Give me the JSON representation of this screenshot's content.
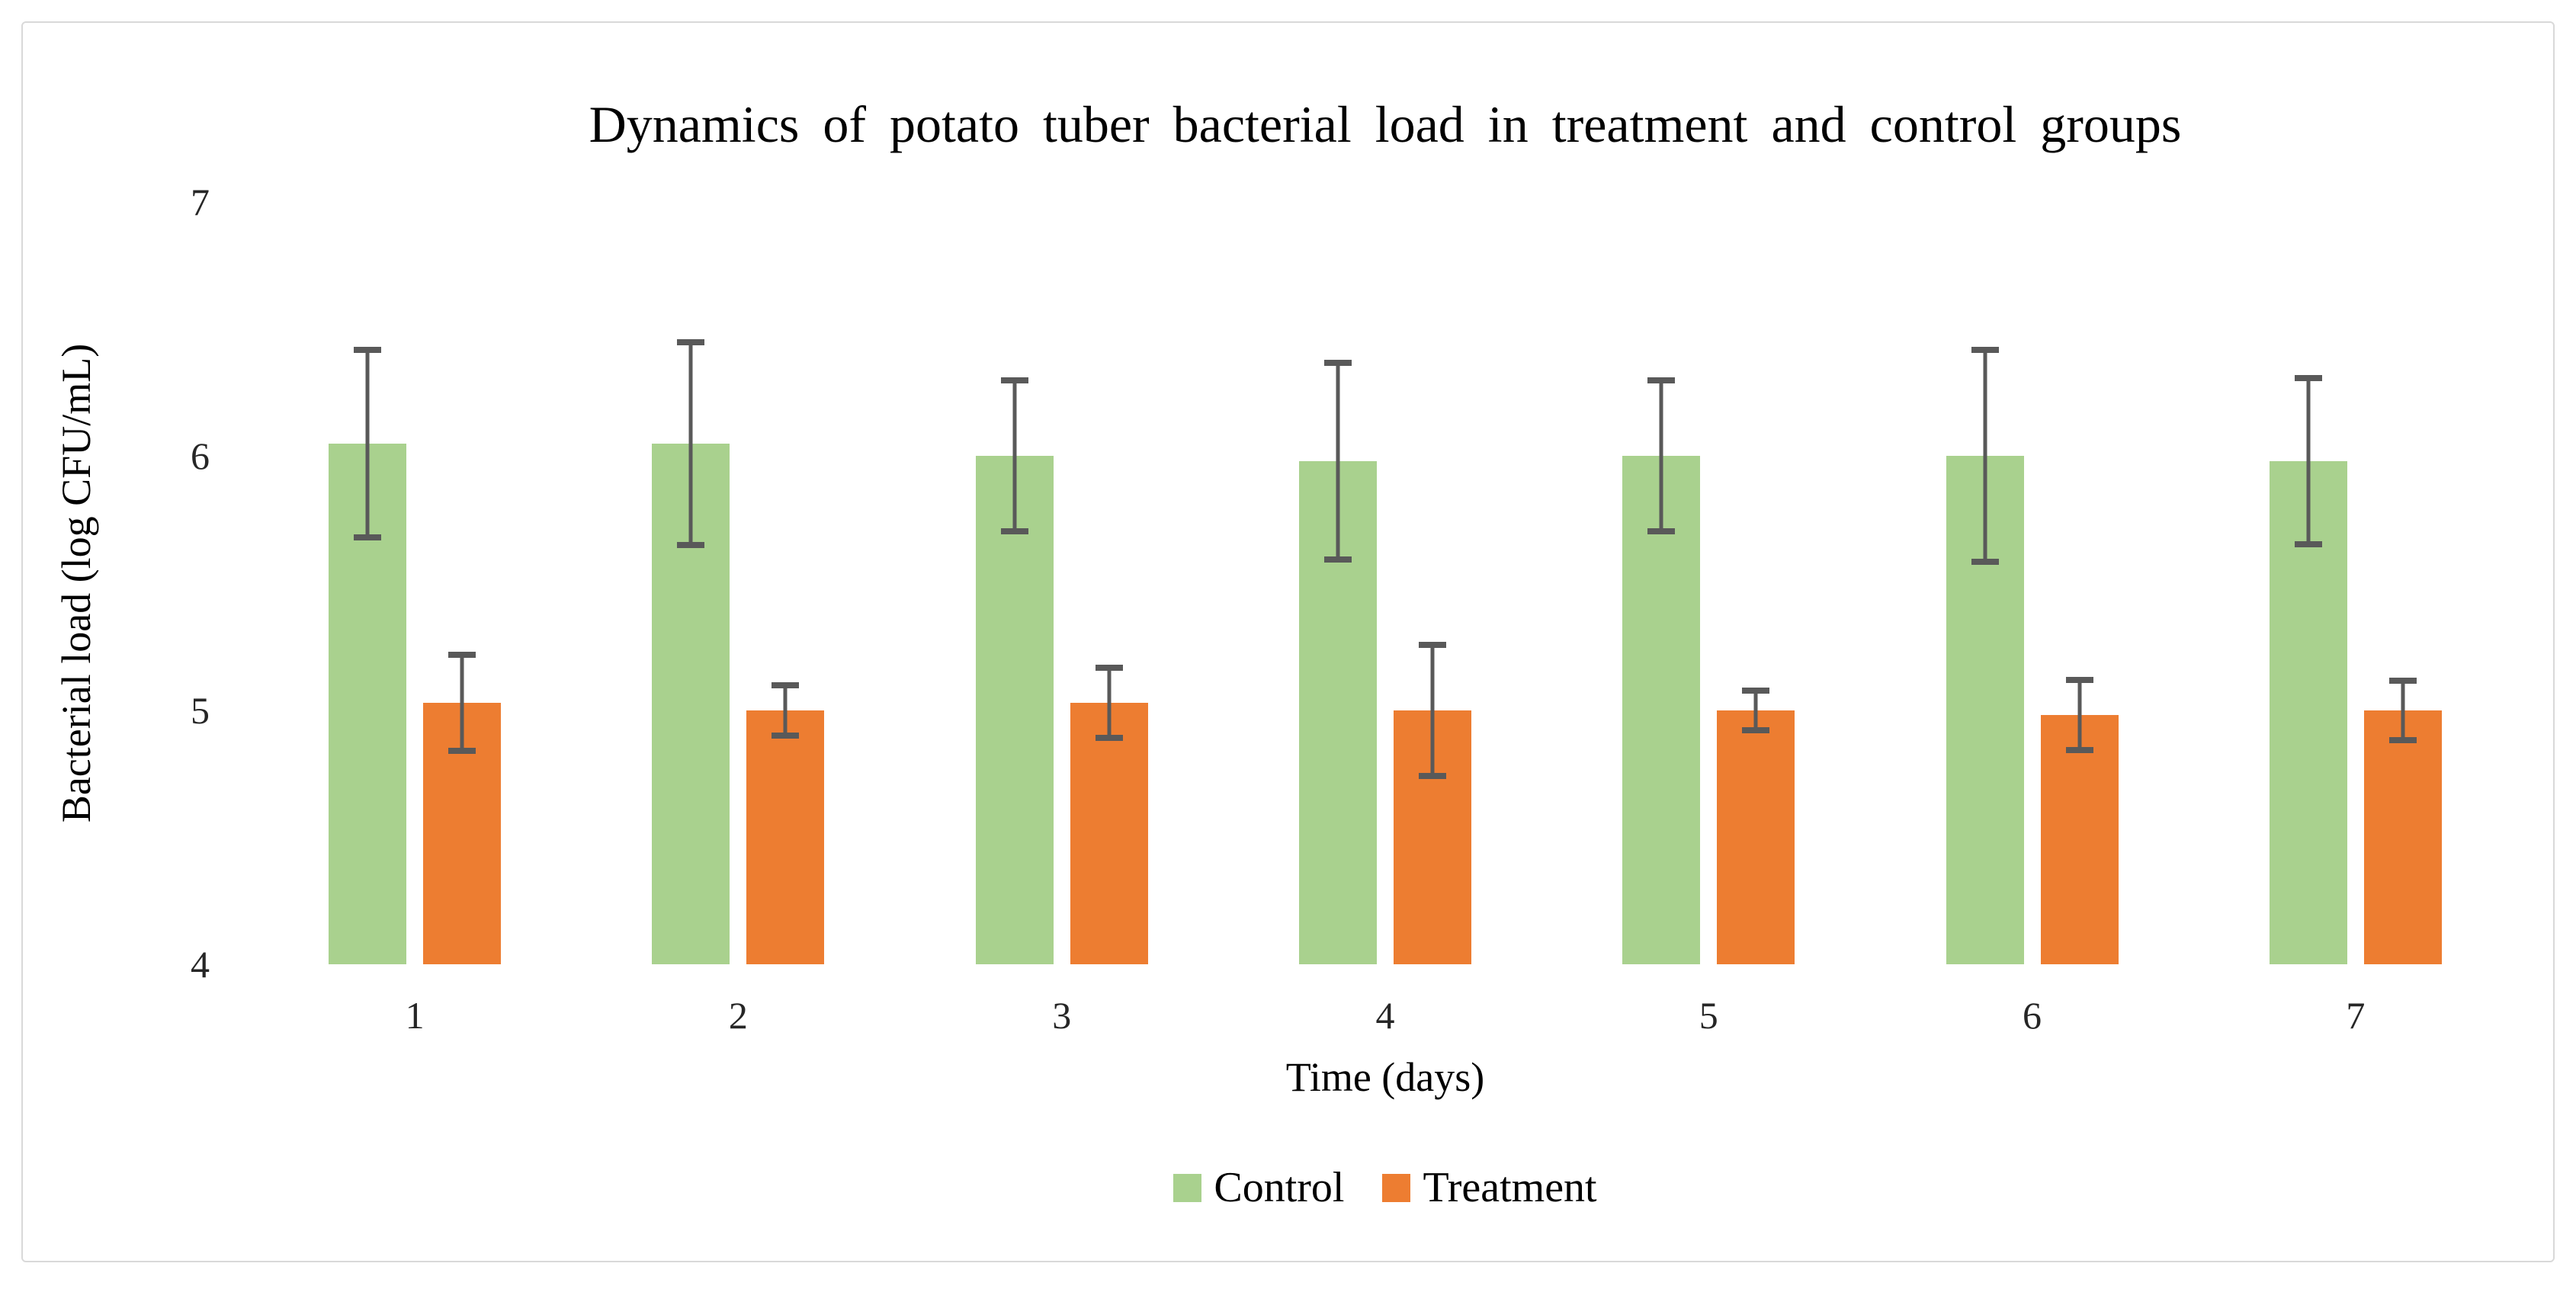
{
  "chart_data": {
    "type": "bar",
    "title": "Dynamics of potato tuber bacterial load in treatment and control groups",
    "xlabel": "Time (days)",
    "ylabel": "Bacterial load (log CFU/mL)",
    "categories": [
      "1",
      "2",
      "3",
      "4",
      "5",
      "6",
      "7"
    ],
    "series": [
      {
        "name": "Control",
        "color": "#a9d18e",
        "values": [
          6.05,
          6.05,
          6.0,
          5.98,
          6.0,
          6.0,
          5.98
        ],
        "errors": [
          0.38,
          0.41,
          0.31,
          0.4,
          0.31,
          0.43,
          0.34
        ]
      },
      {
        "name": "Treatment",
        "color": "#ed7d31",
        "values": [
          5.03,
          5.0,
          5.03,
          5.0,
          5.0,
          4.98,
          5.0
        ],
        "errors": [
          0.2,
          0.11,
          0.15,
          0.27,
          0.09,
          0.15,
          0.13
        ]
      }
    ],
    "ylim": [
      4,
      7
    ],
    "yticks": [
      4,
      5,
      6,
      7
    ],
    "grid": false,
    "legend_position": "bottom",
    "error_bar_color": "#595959",
    "figure_border_color": "#d9d9d9",
    "background_color": "#ffffff"
  }
}
